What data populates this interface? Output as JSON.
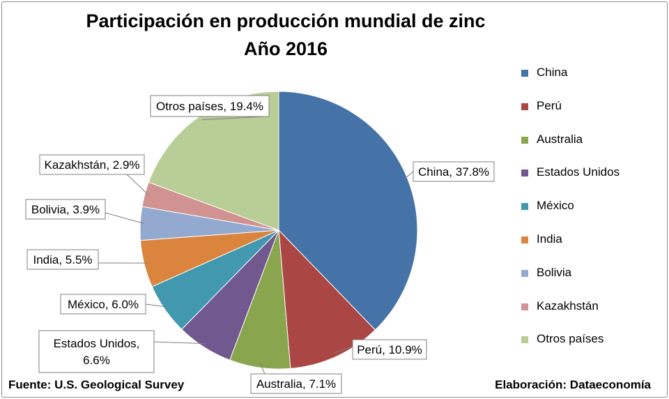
{
  "title_line1": "Participación en producción mundial de zinc",
  "title_line2": "Año 2016",
  "source": "Fuente: U.S. Geological Survey",
  "credit": "Elaboración: Dataeconomía",
  "chart_data": {
    "type": "pie",
    "title": "Participación en producción mundial de zinc Año 2016",
    "legend_position": "right",
    "slices": [
      {
        "label": "China",
        "value": 37.8,
        "data_label": "China, 37.8%",
        "color": "#4572a7"
      },
      {
        "label": "Perú",
        "value": 10.9,
        "data_label": "Perú, 10.9%",
        "color": "#aa4643"
      },
      {
        "label": "Australia",
        "value": 7.1,
        "data_label": "Australia, 7.1%",
        "color": "#89a54e"
      },
      {
        "label": "Estados Unidos",
        "value": 6.6,
        "data_label": "Estados Unidos, 6.6%",
        "color": "#71588f"
      },
      {
        "label": "México",
        "value": 6.0,
        "data_label": "México, 6.0%",
        "color": "#4198af"
      },
      {
        "label": "India",
        "value": 5.5,
        "data_label": "India, 5.5%",
        "color": "#db843d"
      },
      {
        "label": "Bolivia",
        "value": 3.9,
        "data_label": "Bolivia, 3.9%",
        "color": "#93a9cf"
      },
      {
        "label": "Kazakhstán",
        "value": 2.9,
        "data_label": "Kazakhstán, 2.9%",
        "color": "#d19392"
      },
      {
        "label": "Otros países",
        "value": 19.4,
        "data_label": "Otros países, 19.4%",
        "color": "#b9cd96"
      }
    ]
  }
}
